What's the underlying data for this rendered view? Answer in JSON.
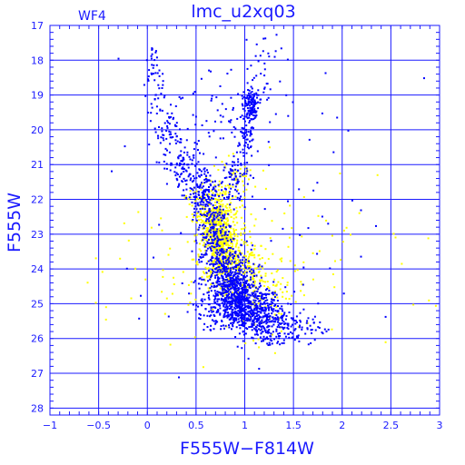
{
  "chart_data": {
    "type": "scatter",
    "title": "lmc_u2xq03",
    "corner_label": "WF4",
    "xlabel": "F555W−F814W",
    "ylabel": "F555W",
    "xlim": [
      -1,
      3
    ],
    "ylim": [
      28.2,
      17
    ],
    "y_inverted": true,
    "grid": true,
    "x_ticks": [
      -1,
      -0.5,
      0,
      0.5,
      1,
      1.5,
      2,
      2.5,
      3
    ],
    "x_tick_labels": [
      "−1",
      "−0.5",
      "0",
      "0.5",
      "1",
      "1.5",
      "2",
      "2.5",
      "3"
    ],
    "y_ticks": [
      17,
      18,
      19,
      20,
      21,
      22,
      23,
      24,
      25,
      26,
      27,
      28
    ],
    "y_tick_labels": [
      "17",
      "18",
      "19",
      "20",
      "21",
      "22",
      "23",
      "24",
      "25",
      "26",
      "27",
      "28"
    ],
    "colors": {
      "axes": "#1a1aff",
      "blue_points": "#0000ff",
      "yellow_points": "#ffff00"
    },
    "series": [
      {
        "color": "yellow",
        "clusters": [
          {
            "x": 0.75,
            "y": 23.1,
            "sx": 0.09,
            "sy": 0.55,
            "n": 520
          },
          {
            "x": 0.65,
            "y": 22.4,
            "sx": 0.1,
            "sy": 0.35,
            "n": 160
          },
          {
            "x": 0.9,
            "y": 23.9,
            "sx": 0.13,
            "sy": 0.45,
            "n": 200
          },
          {
            "x": 1.15,
            "y": 24.6,
            "sx": 0.18,
            "sy": 0.45,
            "n": 110
          },
          {
            "x": 0.9,
            "y": 21.4,
            "sx": 0.12,
            "sy": 0.3,
            "n": 50
          },
          {
            "x": 0.9,
            "y": 23.8,
            "sx": 0.75,
            "sy": 1.3,
            "n": 170
          }
        ]
      },
      {
        "color": "blue",
        "clusters": [
          {
            "x": 0.05,
            "y": 18.3,
            "sx": 0.04,
            "sy": 0.35,
            "n": 25
          },
          {
            "x": 0.1,
            "y": 19.2,
            "sx": 0.06,
            "sy": 0.4,
            "n": 25
          },
          {
            "x": 0.22,
            "y": 20.1,
            "sx": 0.07,
            "sy": 0.35,
            "n": 60
          },
          {
            "x": 0.38,
            "y": 21.0,
            "sx": 0.1,
            "sy": 0.35,
            "n": 90
          },
          {
            "x": 0.55,
            "y": 21.8,
            "sx": 0.1,
            "sy": 0.4,
            "n": 140
          },
          {
            "x": 0.68,
            "y": 22.7,
            "sx": 0.08,
            "sy": 0.45,
            "n": 140
          },
          {
            "x": 0.75,
            "y": 23.6,
            "sx": 0.1,
            "sy": 0.4,
            "n": 170
          },
          {
            "x": 0.85,
            "y": 24.4,
            "sx": 0.14,
            "sy": 0.4,
            "n": 380
          },
          {
            "x": 1.0,
            "y": 25.1,
            "sx": 0.2,
            "sy": 0.35,
            "n": 650
          },
          {
            "x": 1.3,
            "y": 25.7,
            "sx": 0.22,
            "sy": 0.25,
            "n": 200
          },
          {
            "x": 1.06,
            "y": 19.3,
            "sx": 0.04,
            "sy": 0.25,
            "n": 120
          },
          {
            "x": 1.02,
            "y": 20.2,
            "sx": 0.05,
            "sy": 0.35,
            "n": 60
          },
          {
            "x": 0.92,
            "y": 21.3,
            "sx": 0.06,
            "sy": 0.4,
            "n": 70
          },
          {
            "x": 0.82,
            "y": 19.4,
            "sx": 0.2,
            "sy": 0.5,
            "n": 50
          },
          {
            "x": 1.2,
            "y": 18.3,
            "sx": 0.12,
            "sy": 0.7,
            "n": 40
          },
          {
            "x": 0.9,
            "y": 22.5,
            "sx": 0.8,
            "sy": 2.8,
            "n": 80
          }
        ]
      }
    ]
  }
}
